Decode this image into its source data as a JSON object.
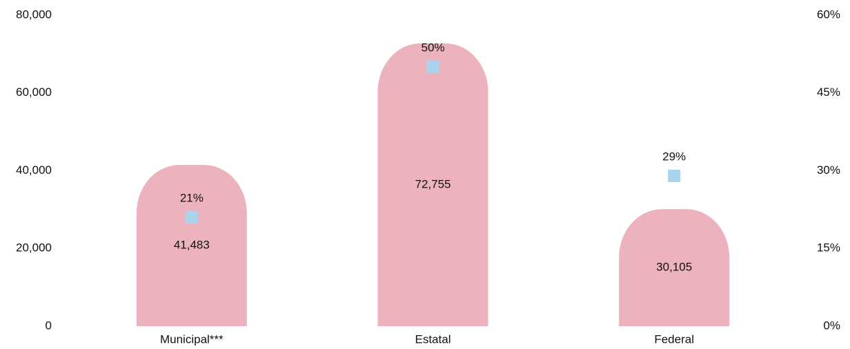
{
  "chart_data": {
    "type": "bar",
    "categories": [
      "Municipal***",
      "Estatal",
      "Federal"
    ],
    "series": [
      {
        "type": "bar",
        "color": "#ecb2bd",
        "values": [
          41483,
          72755,
          30105
        ],
        "value_labels": [
          "41,483",
          "72,755",
          "30,105"
        ]
      },
      {
        "type": "scatter",
        "marker": "square",
        "axis": "y2",
        "color": "#a8d4ee",
        "values": [
          21,
          50,
          29
        ],
        "value_labels": [
          "21%",
          "50%",
          "29%"
        ]
      }
    ],
    "ylim": [
      0,
      80000
    ],
    "yticks": [
      0,
      {
        "value": 20000,
        "label": "20,000"
      },
      {
        "value": 40000,
        "label": "40,000"
      },
      {
        "value": 60000,
        "label": "60,000"
      },
      {
        "value": 80000,
        "label": "80,000"
      }
    ],
    "y2lim": [
      0,
      60
    ],
    "y2ticks": [
      {
        "value": 0,
        "label": "0%"
      },
      {
        "value": 15,
        "label": "15%"
      },
      {
        "value": 30,
        "label": "30%"
      },
      {
        "value": 45,
        "label": "45%"
      },
      {
        "value": 60,
        "label": "60%"
      }
    ],
    "grid": false
  }
}
